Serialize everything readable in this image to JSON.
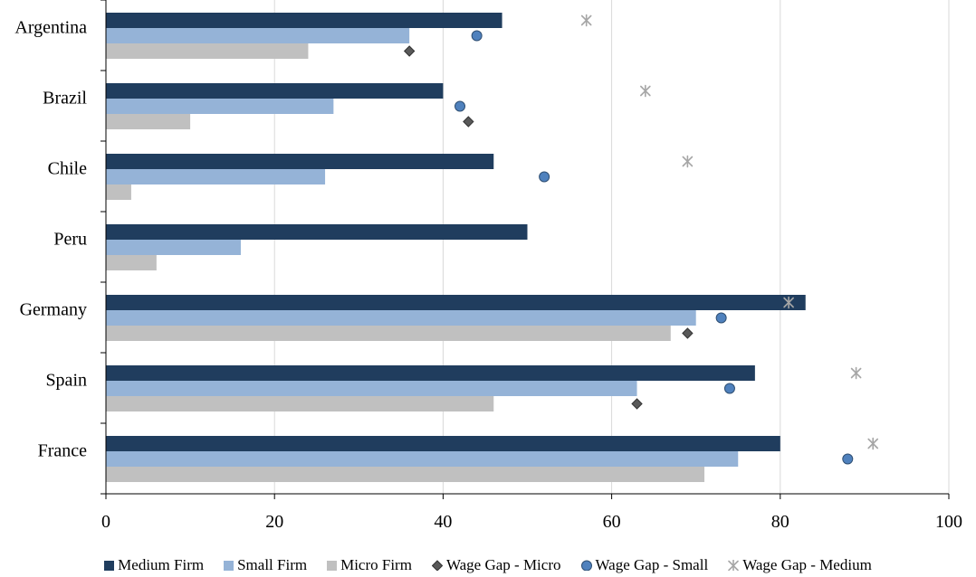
{
  "chart_data": {
    "type": "bar",
    "orientation": "horizontal",
    "categories": [
      "Argentina",
      "Brazil",
      "Chile",
      "Peru",
      "Germany",
      "Spain",
      "France"
    ],
    "xlim": [
      0,
      100
    ],
    "xticks": [
      0,
      20,
      40,
      60,
      80,
      100
    ],
    "grid": "vertical",
    "legend_position": "bottom",
    "series": [
      {
        "name": "Medium Firm",
        "kind": "bar",
        "color": "#203d5e",
        "values": [
          47,
          40,
          46,
          50,
          83,
          77,
          80
        ]
      },
      {
        "name": "Small Firm",
        "kind": "bar",
        "color": "#95b3d7",
        "values": [
          36,
          27,
          26,
          16,
          70,
          63,
          75
        ]
      },
      {
        "name": "Micro Firm",
        "kind": "bar",
        "color": "#c0c0c0",
        "values": [
          24,
          10,
          3,
          6,
          67,
          46,
          71
        ]
      },
      {
        "name": "Wage Gap - Micro",
        "kind": "marker",
        "marker": "diamond",
        "color": "#595959",
        "values": [
          36,
          43,
          null,
          null,
          69,
          63,
          null
        ]
      },
      {
        "name": "Wage Gap - Small",
        "kind": "marker",
        "marker": "circle",
        "color": "#4f81bd",
        "values": [
          44,
          42,
          52,
          null,
          73,
          74,
          88
        ]
      },
      {
        "name": "Wage Gap - Medium",
        "kind": "marker",
        "marker": "asterisk",
        "color": "#a6a6a6",
        "values": [
          57,
          64,
          69,
          null,
          81,
          89,
          91
        ]
      }
    ]
  }
}
